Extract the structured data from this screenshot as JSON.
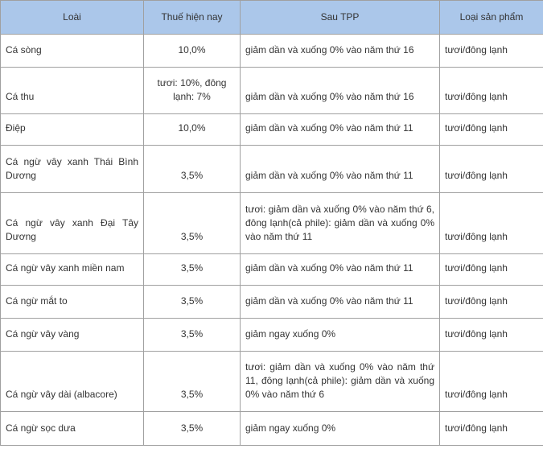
{
  "table": {
    "header": [
      "Loài",
      "Thuế hiện nay",
      "Sau TPP",
      "Loại sản phẩm"
    ],
    "rows": [
      [
        "Cá sòng",
        "10,0%",
        "giảm dần và xuống 0% vào năm thứ 16",
        "tươi/đông lạnh"
      ],
      [
        "Cá thu",
        "tươi: 10%, đông lạnh: 7%",
        "giảm dần và xuống 0% vào năm thứ 16",
        "tươi/đông lạnh"
      ],
      [
        "Điệp",
        "10,0%",
        "giảm dần và xuống 0% vào năm thứ 11",
        "tươi/đông lạnh"
      ],
      [
        "Cá ngừ vây xanh Thái Bình Dương",
        "3,5%",
        "giảm dần và xuống 0% vào năm thứ 11",
        "tươi/đông lạnh"
      ],
      [
        "Cá ngừ vây xanh Đại Tây Dương",
        "3,5%",
        "tươi: giảm dần và xuống 0% vào năm thứ 6, đông lạnh(cả phile): giảm dần và xuống 0% vào năm thứ 11",
        "tươi/đông lạnh"
      ],
      [
        "Cá ngừ vây xanh miền nam",
        "3,5%",
        "giảm dần và xuống 0% vào năm thứ 11",
        "tươi/đông lạnh"
      ],
      [
        "Cá ngừ mắt to",
        "3,5%",
        "giảm dần và xuống 0% vào năm thứ 11",
        "tươi/đông lạnh"
      ],
      [
        "Cá ngừ vây vàng",
        "3,5%",
        "giảm ngay xuống 0%",
        "tươi/đông lạnh"
      ],
      [
        "Cá ngừ vây dài (albacore)",
        "3,5%",
        "tươi: giảm dần và xuống 0% vào năm thứ 11, đông lạnh(cả phile): giảm dần và xuống 0% vào năm thứ 6",
        "tươi/đông lạnh"
      ],
      [
        "Cá ngừ sọc dưa",
        "3,5%",
        "giảm ngay xuống 0%",
        "tươi/đông lạnh"
      ]
    ]
  }
}
